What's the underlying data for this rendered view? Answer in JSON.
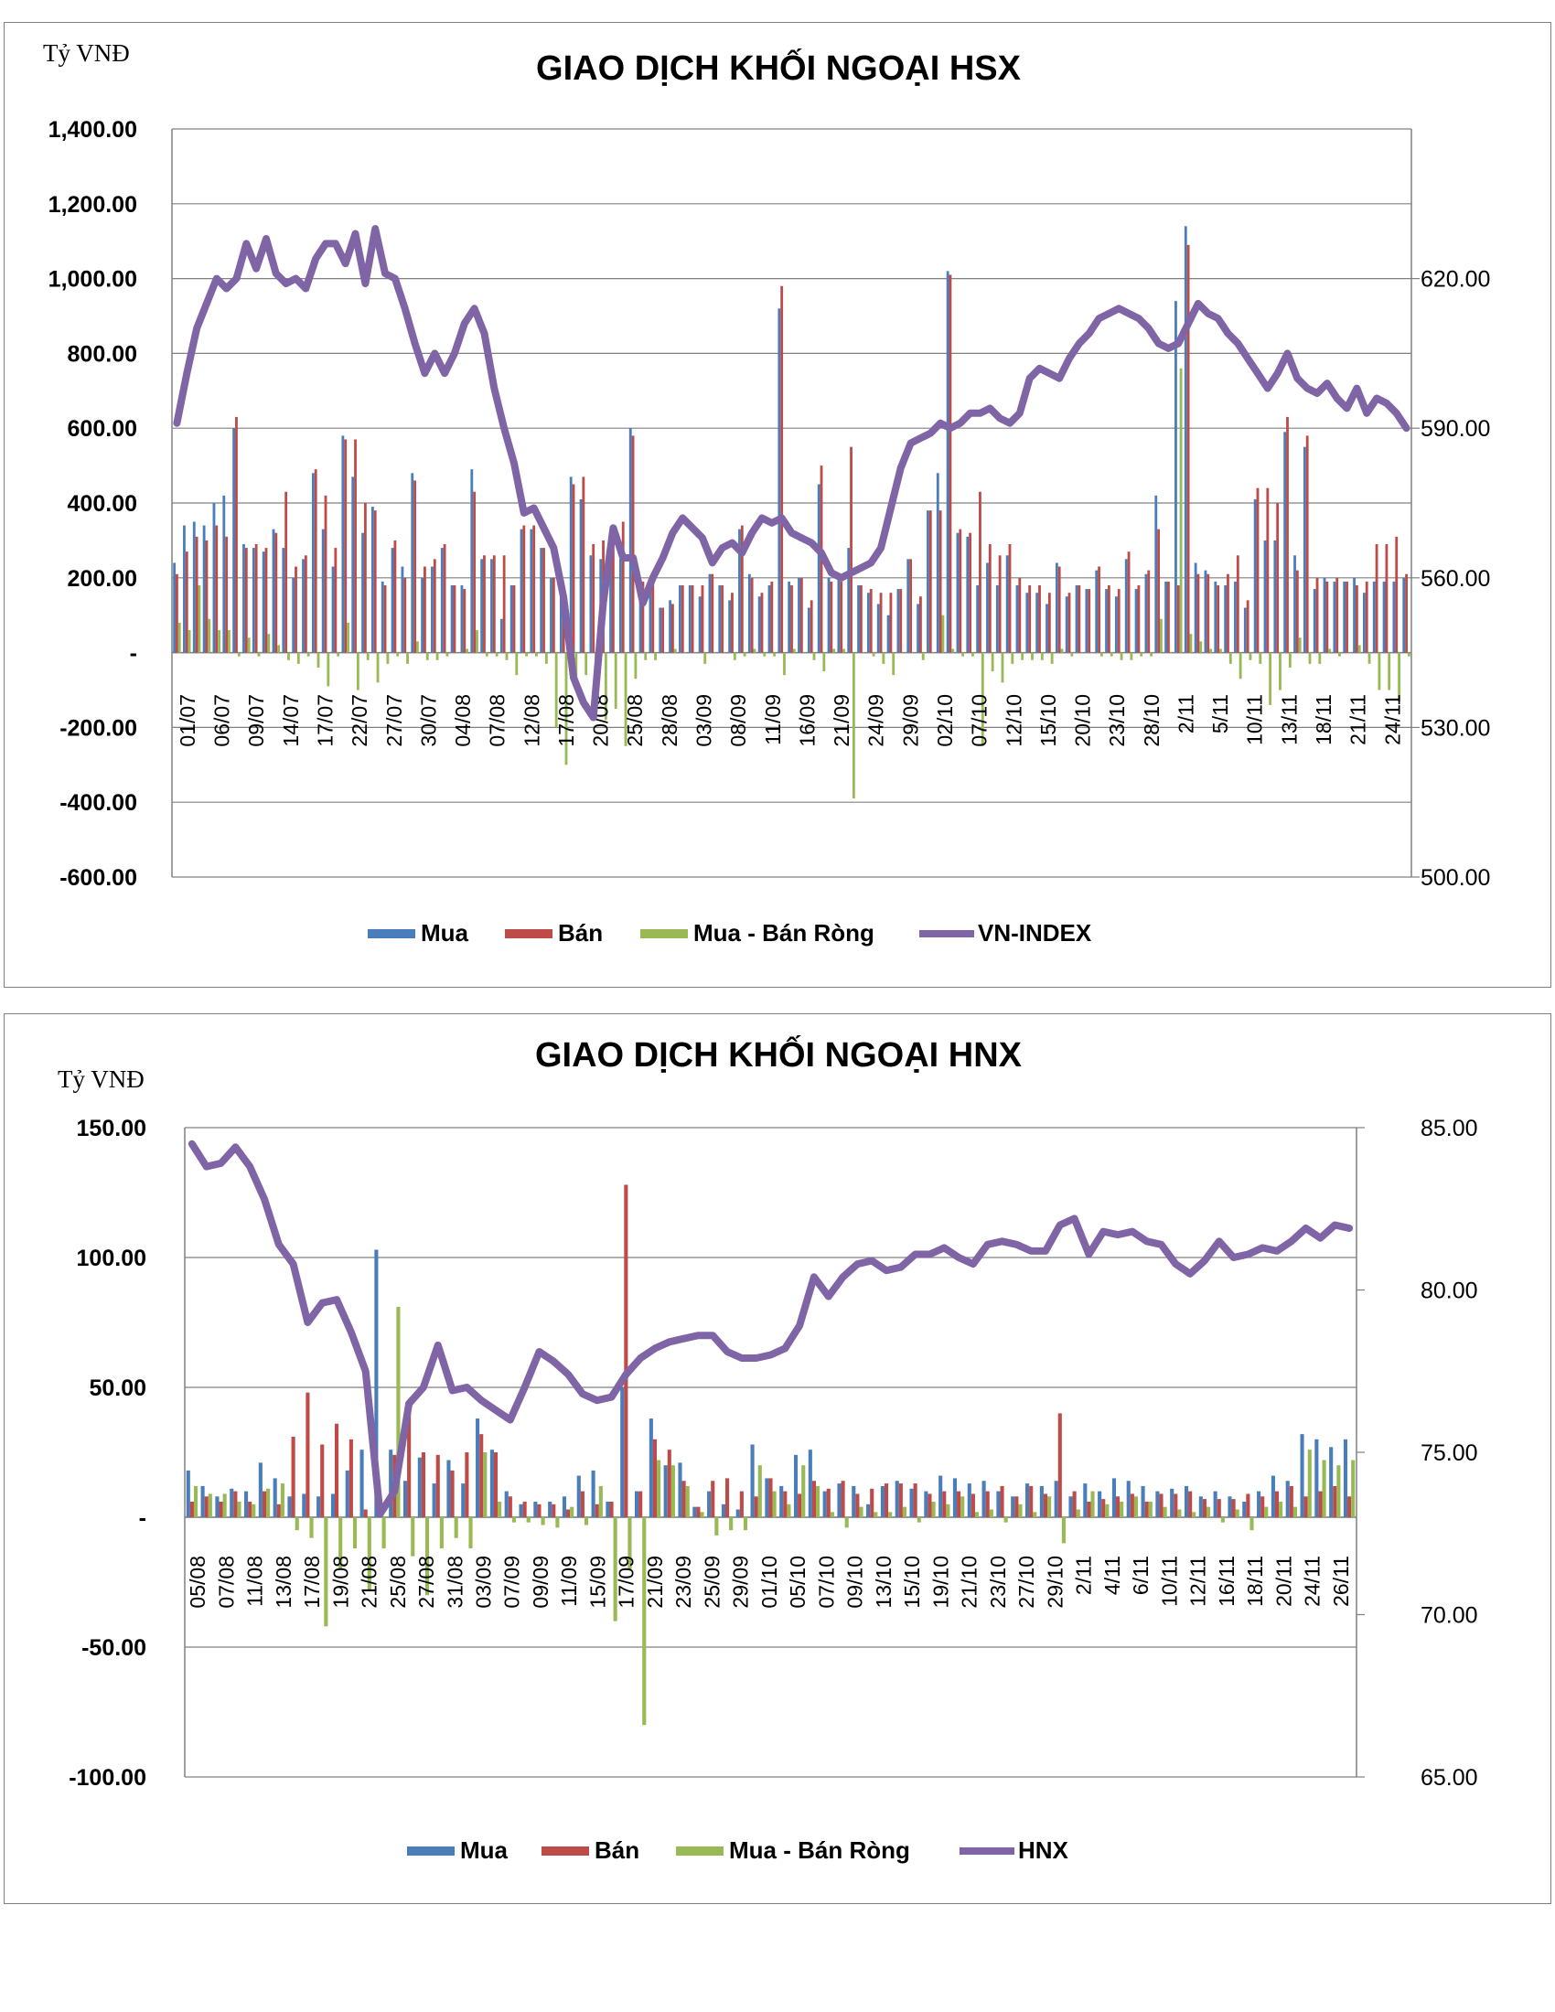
{
  "colors": {
    "buy": "#4a7ebb",
    "sell": "#be4b48",
    "net": "#98b954",
    "index": "#7f64a6",
    "grid": "#808080"
  },
  "chart_data": [
    {
      "type": "bar",
      "title": "GIAO DỊCH KHỐI NGOẠI HSX",
      "unit_label": "Tỷ VNĐ",
      "ylim": [
        -600,
        1400
      ],
      "y2lim": [
        500,
        650
      ],
      "yticks": [
        "1,400.00",
        "1,200.00",
        "1,000.00",
        "800.00",
        "600.00",
        "400.00",
        "200.00",
        "-",
        "-200.00",
        "-400.00",
        "-600.00"
      ],
      "y2ticks": [
        "620.00",
        "590.00",
        "560.00",
        "530.00",
        "500.00"
      ],
      "xticks": [
        "01/07",
        "06/07",
        "09/07",
        "14/07",
        "17/07",
        "22/07",
        "27/07",
        "30/07",
        "04/08",
        "07/08",
        "12/08",
        "17/08",
        "20/08",
        "25/08",
        "28/08",
        "03/09",
        "08/09",
        "11/09",
        "16/09",
        "21/09",
        "24/09",
        "29/09",
        "02/10",
        "07/10",
        "12/10",
        "15/10",
        "20/10",
        "23/10",
        "28/10",
        "2/11",
        "5/11",
        "10/11",
        "13/11",
        "18/11",
        "21/11",
        "24/11"
      ],
      "grid": true,
      "legend": "bottom",
      "series": [
        {
          "name": "Mua",
          "type": "bar",
          "values": [
            240,
            340,
            350,
            340,
            400,
            420,
            600,
            290,
            280,
            270,
            330,
            280,
            200,
            250,
            480,
            330,
            230,
            580,
            470,
            320,
            390,
            190,
            280,
            230,
            480,
            200,
            230,
            280,
            180,
            180,
            490,
            250,
            250,
            90,
            180,
            330,
            330,
            280,
            200,
            180,
            470,
            410,
            260,
            250,
            250,
            250,
            600,
            180,
            200,
            120,
            140,
            180,
            180,
            150,
            210,
            180,
            140,
            330,
            210,
            150,
            180,
            920,
            190,
            200,
            120,
            450,
            200,
            200,
            280,
            180,
            160,
            130,
            100,
            170,
            250,
            130,
            380,
            480,
            1020,
            320,
            310,
            180,
            240,
            180,
            260,
            180,
            160,
            160,
            130,
            240,
            150,
            180,
            170,
            220,
            170,
            150,
            250,
            170,
            210,
            420,
            190,
            940,
            1140,
            240,
            220,
            190,
            180,
            190,
            120,
            410,
            300,
            300,
            590,
            260,
            550,
            170,
            200,
            190,
            190,
            200,
            160,
            190,
            190,
            190,
            200
          ]
        },
        {
          "name": "Bán",
          "type": "bar",
          "values": [
            210,
            270,
            310,
            300,
            340,
            310,
            630,
            280,
            290,
            280,
            320,
            430,
            230,
            260,
            490,
            420,
            280,
            570,
            570,
            400,
            380,
            180,
            300,
            200,
            460,
            230,
            250,
            290,
            180,
            170,
            430,
            260,
            260,
            260,
            180,
            340,
            340,
            280,
            200,
            180,
            450,
            470,
            290,
            300,
            300,
            350,
            580,
            190,
            210,
            120,
            130,
            180,
            180,
            180,
            210,
            180,
            160,
            340,
            200,
            160,
            190,
            980,
            180,
            200,
            140,
            500,
            190,
            190,
            550,
            180,
            170,
            160,
            160,
            170,
            250,
            150,
            380,
            380,
            1010,
            330,
            320,
            430,
            290,
            260,
            290,
            200,
            180,
            180,
            160,
            230,
            160,
            180,
            170,
            230,
            180,
            170,
            270,
            180,
            220,
            330,
            190,
            180,
            1090,
            210,
            210,
            180,
            210,
            260,
            140,
            440,
            440,
            400,
            630,
            220,
            580,
            200,
            190,
            200,
            190,
            180,
            190,
            290,
            290,
            310,
            210
          ]
        },
        {
          "name": "Mua - Bán Ròng",
          "type": "bar",
          "values": [
            80,
            60,
            180,
            90,
            60,
            60,
            -10,
            40,
            -10,
            50,
            20,
            -20,
            -30,
            -10,
            -40,
            -90,
            -10,
            80,
            -100,
            -20,
            -80,
            -30,
            -10,
            -30,
            30,
            -20,
            -20,
            -10,
            0,
            10,
            60,
            -10,
            -10,
            -20,
            -60,
            -10,
            -10,
            -30,
            -200,
            -300,
            -100,
            -60,
            -80,
            -180,
            -150,
            -250,
            -70,
            -20,
            -20,
            0,
            10,
            0,
            0,
            -30,
            0,
            0,
            -20,
            -10,
            10,
            -10,
            -10,
            -60,
            10,
            0,
            -20,
            -50,
            10,
            10,
            -390,
            0,
            -10,
            -30,
            -60,
            0,
            0,
            -20,
            0,
            100,
            10,
            -10,
            -10,
            -250,
            -50,
            -80,
            -30,
            -20,
            -20,
            -20,
            -30,
            10,
            -10,
            0,
            0,
            -10,
            -10,
            -20,
            -20,
            -10,
            -10,
            90,
            0,
            760,
            50,
            30,
            10,
            10,
            -30,
            -70,
            -20,
            -30,
            -140,
            -100,
            -40,
            40,
            -30,
            -30,
            10,
            -10,
            0,
            20,
            -30,
            -100,
            -100,
            -130,
            -10
          ]
        },
        {
          "name": "VN-INDEX",
          "type": "line",
          "axis": "secondary",
          "values": [
            591,
            601,
            610,
            615,
            620,
            618,
            620,
            627,
            622,
            628,
            621,
            619,
            620,
            618,
            624,
            627,
            627,
            623,
            629,
            619,
            630,
            621,
            620,
            614,
            607,
            601,
            605,
            601,
            605,
            611,
            614,
            609,
            598,
            590,
            583,
            573,
            574,
            570,
            566,
            556,
            540,
            535,
            532,
            555,
            570,
            564,
            564,
            555,
            560,
            564,
            569,
            572,
            570,
            568,
            563,
            566,
            567,
            565,
            569,
            572,
            571,
            572,
            569,
            568,
            567,
            565,
            561,
            560,
            561,
            562,
            563,
            566,
            574,
            582,
            587,
            588,
            589,
            591,
            590,
            591,
            593,
            593,
            594,
            592,
            591,
            593,
            600,
            602,
            601,
            600,
            604,
            607,
            609,
            612,
            613,
            614,
            613,
            612,
            610,
            607,
            606,
            607,
            611,
            615,
            613,
            612,
            609,
            607,
            604,
            601,
            598,
            601,
            605,
            600,
            598,
            597,
            599,
            596,
            594,
            598,
            593,
            596,
            595,
            593,
            590
          ]
        }
      ]
    },
    {
      "type": "bar",
      "title": "GIAO DỊCH KHỐI NGOẠI HNX",
      "unit_label": "Tỷ VNĐ",
      "ylim": [
        -100,
        150
      ],
      "y2lim": [
        65,
        85
      ],
      "yticks": [
        "150.00",
        "100.00",
        "50.00",
        "-",
        "-50.00",
        "-100.00"
      ],
      "y2ticks": [
        "85.00",
        "80.00",
        "75.00",
        "70.00",
        "65.00"
      ],
      "xticks": [
        "05/08",
        "07/08",
        "11/08",
        "13/08",
        "17/08",
        "19/08",
        "21/08",
        "25/08",
        "27/08",
        "31/08",
        "03/09",
        "07/09",
        "09/09",
        "11/09",
        "15/09",
        "17/09",
        "21/09",
        "23/09",
        "25/09",
        "29/09",
        "01/10",
        "05/10",
        "07/10",
        "09/10",
        "13/10",
        "15/10",
        "19/10",
        "21/10",
        "23/10",
        "27/10",
        "29/10",
        "2/11",
        "4/11",
        "6/11",
        "10/11",
        "12/11",
        "16/11",
        "18/11",
        "20/11",
        "24/11",
        "26/11"
      ],
      "grid": true,
      "legend": "bottom",
      "series": [
        {
          "name": "Mua",
          "type": "bar",
          "values": [
            18,
            12,
            8,
            11,
            10,
            21,
            15,
            8,
            9,
            8,
            9,
            18,
            26,
            103,
            26,
            14,
            23,
            13,
            22,
            13,
            38,
            26,
            10,
            5,
            6,
            6,
            8,
            16,
            18,
            6,
            50,
            10,
            38,
            20,
            21,
            4,
            10,
            5,
            3,
            28,
            15,
            12,
            24,
            26,
            10,
            13,
            12,
            5,
            12,
            14,
            11,
            10,
            16,
            15,
            13,
            14,
            10,
            8,
            13,
            12,
            14,
            8,
            13,
            10,
            15,
            14,
            12,
            10,
            11,
            12,
            8,
            10,
            8,
            6,
            10,
            16,
            14,
            32,
            30,
            27,
            30
          ]
        },
        {
          "name": "Bán",
          "type": "bar",
          "values": [
            6,
            8,
            6,
            10,
            6,
            10,
            5,
            31,
            48,
            28,
            36,
            30,
            3,
            3,
            24,
            45,
            25,
            24,
            18,
            25,
            32,
            25,
            8,
            6,
            5,
            5,
            3,
            10,
            5,
            6,
            128,
            10,
            30,
            26,
            14,
            4,
            14,
            15,
            10,
            8,
            15,
            10,
            9,
            14,
            11,
            14,
            9,
            11,
            13,
            13,
            13,
            9,
            10,
            10,
            9,
            10,
            12,
            8,
            12,
            9,
            40,
            10,
            6,
            7,
            8,
            9,
            6,
            9,
            9,
            10,
            7,
            7,
            7,
            9,
            8,
            10,
            12,
            8,
            10,
            12,
            8
          ]
        },
        {
          "name": "Mua - Bán Ròng",
          "type": "bar",
          "values": [
            12,
            9,
            9,
            6,
            5,
            11,
            13,
            -5,
            -8,
            -42,
            -20,
            -12,
            -28,
            -12,
            81,
            -15,
            -30,
            -12,
            -8,
            -12,
            25,
            6,
            -2,
            -2,
            -3,
            -4,
            4,
            -3,
            12,
            -40,
            -20,
            -80,
            22,
            20,
            12,
            2,
            -7,
            -5,
            -5,
            20,
            10,
            5,
            20,
            12,
            2,
            -4,
            4,
            2,
            2,
            4,
            -2,
            6,
            5,
            8,
            2,
            3,
            -2,
            5,
            2,
            8,
            -10,
            3,
            10,
            5,
            6,
            8,
            6,
            4,
            3,
            2,
            4,
            -2,
            3,
            -5,
            4,
            6,
            4,
            26,
            22,
            20,
            22
          ]
        },
        {
          "name": "HNX",
          "type": "line",
          "axis": "secondary",
          "values": [
            84.5,
            83.8,
            83.9,
            84.4,
            83.8,
            82.8,
            81.4,
            80.8,
            79.0,
            79.6,
            79.7,
            78.7,
            77.5,
            73.1,
            73.8,
            76.5,
            77.0,
            78.3,
            76.9,
            77.0,
            76.6,
            76.3,
            76.0,
            77.0,
            78.1,
            77.8,
            77.4,
            76.8,
            76.6,
            76.7,
            77.4,
            77.9,
            78.2,
            78.4,
            78.5,
            78.6,
            78.6,
            78.1,
            77.9,
            77.9,
            78.0,
            78.2,
            78.9,
            80.4,
            79.8,
            80.4,
            80.8,
            80.9,
            80.6,
            80.7,
            81.1,
            81.1,
            81.3,
            81.0,
            80.8,
            81.4,
            81.5,
            81.4,
            81.2,
            81.2,
            82.0,
            82.2,
            81.1,
            81.8,
            81.7,
            81.8,
            81.5,
            81.4,
            80.8,
            80.5,
            80.9,
            81.5,
            81.0,
            81.1,
            81.3,
            81.2,
            81.5,
            81.9,
            81.6,
            82.0,
            81.9
          ]
        }
      ]
    }
  ]
}
